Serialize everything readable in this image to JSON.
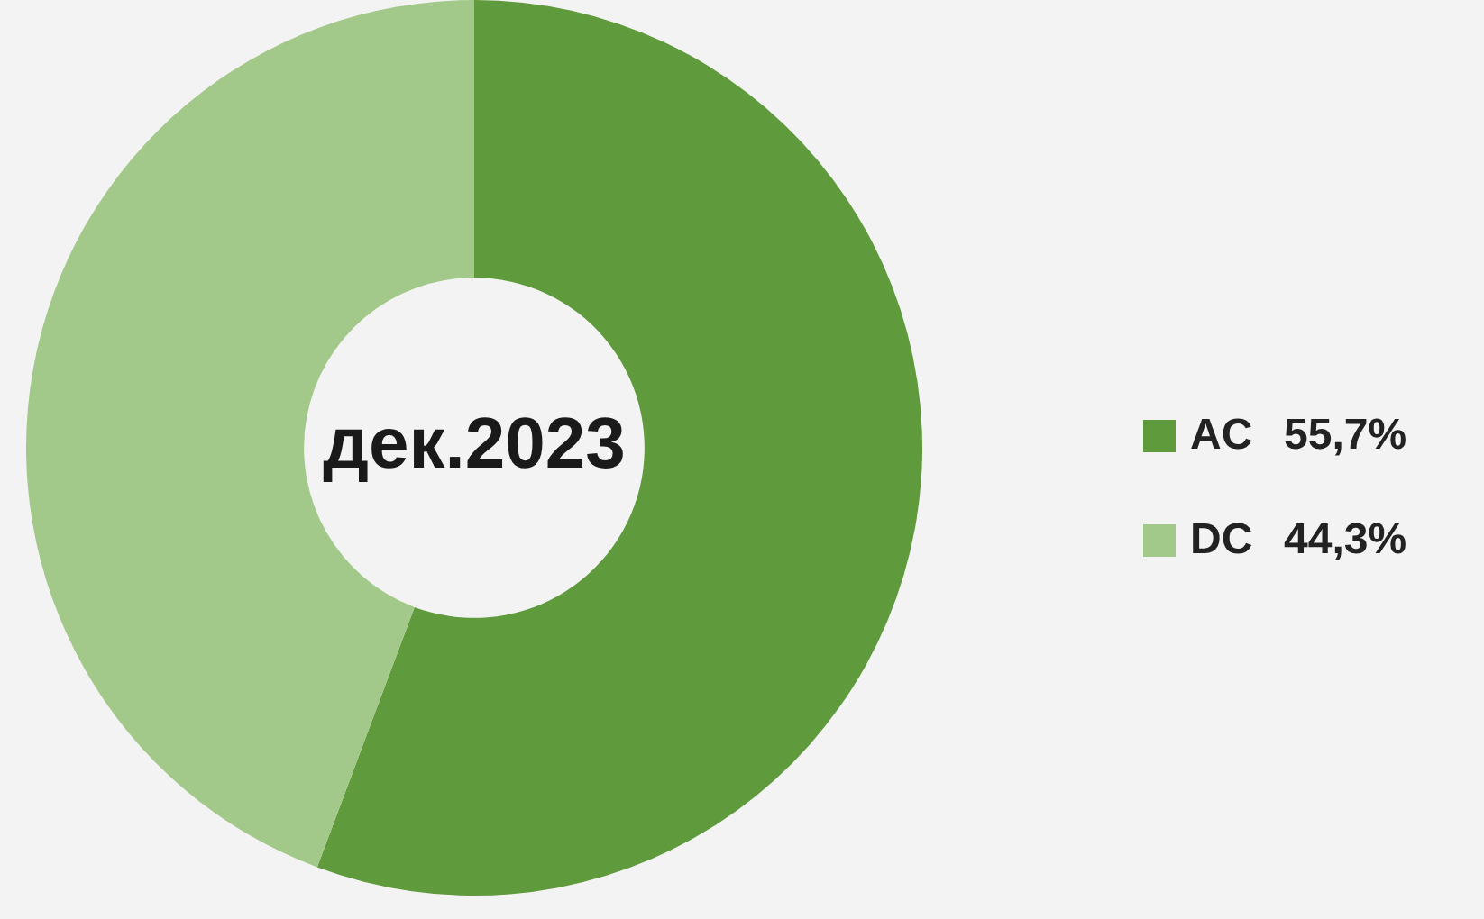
{
  "chart_data": {
    "type": "donut",
    "title": "дек.2023",
    "categories": [
      "AC",
      "DC"
    ],
    "values": [
      55.7,
      44.3
    ],
    "value_labels": [
      "55,7%",
      "44,3%"
    ],
    "colors": [
      "#5f9a3c",
      "#a3c98a"
    ],
    "legend": "right"
  }
}
